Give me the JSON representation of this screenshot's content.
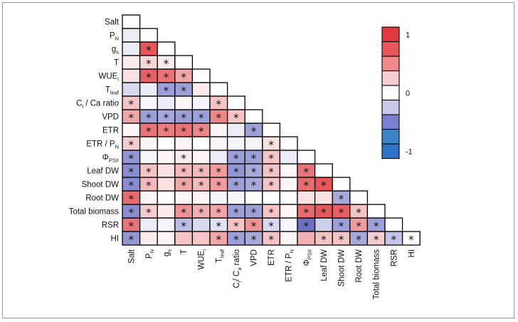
{
  "chart_data": {
    "type": "heatmap",
    "title": "",
    "variables": [
      "Salt",
      "PN",
      "gs",
      "T",
      "WUEi",
      "Tleaf",
      "Ci / Ca ratio",
      "VPD",
      "ETR",
      "ETR / PN",
      "ΦPSII",
      "Leaf DW",
      "Shoot DW",
      "Root DW",
      "Total biomass",
      "RSR",
      "HI"
    ],
    "row_labels": [
      {
        "main": "Salt",
        "sub": ""
      },
      {
        "main": "P",
        "sub": "N"
      },
      {
        "main": "g",
        "sub": "s"
      },
      {
        "main": "T",
        "sub": ""
      },
      {
        "main": "WUE",
        "sub": "i"
      },
      {
        "main": "T",
        "sub": "leaf"
      },
      {
        "main": "C",
        "sub": "i",
        "rest": " / Ca ratio"
      },
      {
        "main": "VPD",
        "sub": ""
      },
      {
        "main": "ETR",
        "sub": ""
      },
      {
        "main": "ETR / P",
        "sub": "N"
      },
      {
        "main": "Φ",
        "sub": "PSII"
      },
      {
        "main": "Leaf DW",
        "sub": ""
      },
      {
        "main": "Shoot DW",
        "sub": ""
      },
      {
        "main": "Root DW",
        "sub": ""
      },
      {
        "main": "Total biomass",
        "sub": ""
      },
      {
        "main": "RSR",
        "sub": ""
      },
      {
        "main": "HI",
        "sub": ""
      }
    ],
    "col_labels": [
      {
        "main": "Salt",
        "sub": ""
      },
      {
        "main": "P",
        "sub": "N"
      },
      {
        "main": "g",
        "sub": "s"
      },
      {
        "main": "T",
        "sub": ""
      },
      {
        "main": "WUE",
        "sub": "i"
      },
      {
        "main": "T",
        "sub": "leaf"
      },
      {
        "main": "C",
        "sub": "i",
        "rest": "/ C",
        "sub2": "a",
        "rest2": " ratio"
      },
      {
        "main": "VPD",
        "sub": ""
      },
      {
        "main": "ETR",
        "sub": ""
      },
      {
        "main": "ETR / P",
        "sub": "N"
      },
      {
        "main": "Φ",
        "sub": "PSII"
      },
      {
        "main": "Leaf DW",
        "sub": ""
      },
      {
        "main": "Shoot DW",
        "sub": ""
      },
      {
        "main": "Root DW",
        "sub": ""
      },
      {
        "main": "Total biomass",
        "sub": ""
      },
      {
        "main": "RSR",
        "sub": ""
      },
      {
        "main": "HI",
        "sub": ""
      }
    ],
    "values": [
      [],
      [
        -0.1
      ],
      [
        -0.1,
        0.85
      ],
      [
        0.1,
        0.2,
        0.1
      ],
      [
        0.15,
        0.8,
        0.7,
        0.45
      ],
      [
        -0.2,
        -0.1,
        -0.5,
        -0.5,
        0.1
      ],
      [
        0.3,
        -0.05,
        -0.1,
        0.05,
        -0.05,
        0.3
      ],
      [
        0.45,
        -0.5,
        -0.45,
        -0.5,
        -0.5,
        0.6,
        0.3
      ],
      [
        0.05,
        0.7,
        0.65,
        0.7,
        0.6,
        0.05,
        -0.1,
        -0.5
      ],
      [
        0.25,
        0.05,
        0.0,
        0.05,
        0.0,
        0.05,
        -0.05,
        -0.05,
        0.15
      ],
      [
        -0.55,
        -0.05,
        0.05,
        0.1,
        0.05,
        -0.1,
        -0.5,
        -0.5,
        0.3,
        -0.1
      ],
      [
        -0.6,
        0.3,
        0.15,
        0.35,
        0.35,
        0.5,
        -0.55,
        -0.45,
        0.3,
        0.05,
        0.7
      ],
      [
        -0.6,
        0.35,
        0.15,
        0.45,
        0.35,
        0.5,
        -0.5,
        -0.45,
        0.3,
        0.05,
        0.75,
        0.85
      ],
      [
        0.75,
        0.05,
        0.0,
        0.05,
        0.05,
        -0.05,
        -0.05,
        0.0,
        0.0,
        0.0,
        0.15,
        0.15,
        -0.45
      ],
      [
        -0.6,
        0.25,
        0.1,
        0.55,
        0.4,
        0.45,
        -0.5,
        -0.5,
        0.3,
        0.05,
        0.75,
        0.85,
        0.8,
        0.3
      ],
      [
        0.7,
        -0.1,
        -0.05,
        -0.35,
        -0.2,
        -0.15,
        0.3,
        0.55,
        -0.2,
        -0.05,
        -0.75,
        -0.25,
        -0.5,
        0.5,
        -0.5
      ],
      [
        -0.55,
        0.1,
        0.05,
        0.3,
        0.3,
        0.45,
        -0.5,
        -0.45,
        0.3,
        0.05,
        0.4,
        0.3,
        0.3,
        -0.45,
        0.25,
        -0.3
      ]
    ],
    "significant": [
      [],
      [
        0
      ],
      [
        0,
        1
      ],
      [
        0,
        1,
        1
      ],
      [
        0,
        1,
        1,
        1
      ],
      [
        0,
        0,
        1,
        1,
        0
      ],
      [
        1,
        0,
        0,
        0,
        0,
        1
      ],
      [
        1,
        1,
        1,
        1,
        1,
        1,
        1
      ],
      [
        0,
        1,
        1,
        1,
        1,
        0,
        0,
        1
      ],
      [
        1,
        0,
        0,
        0,
        0,
        0,
        0,
        0,
        1
      ],
      [
        1,
        0,
        0,
        1,
        0,
        0,
        1,
        1,
        1,
        0
      ],
      [
        1,
        1,
        0,
        1,
        1,
        1,
        1,
        1,
        1,
        0,
        1
      ],
      [
        1,
        1,
        0,
        1,
        1,
        1,
        1,
        1,
        1,
        0,
        1,
        1
      ],
      [
        1,
        0,
        0,
        0,
        0,
        0,
        0,
        0,
        0,
        0,
        0,
        0,
        1
      ],
      [
        1,
        1,
        0,
        1,
        1,
        1,
        1,
        1,
        1,
        0,
        1,
        1,
        1,
        1
      ],
      [
        1,
        0,
        0,
        1,
        0,
        1,
        1,
        1,
        1,
        0,
        1,
        0,
        1,
        1,
        1
      ],
      [
        1,
        0,
        0,
        0,
        0,
        1,
        1,
        1,
        1,
        0,
        0,
        1,
        1,
        1,
        1,
        1
      ]
    ],
    "significance_marker": "*",
    "diagonal_marker": "*",
    "diagonal_marker_row": 16,
    "colorbar": {
      "range": [
        -1,
        1
      ],
      "tick_labels": [
        "1",
        "0",
        "-1"
      ],
      "tick_values": [
        1,
        0,
        -1
      ],
      "steps": [
        1.0,
        0.75,
        0.5,
        0.25,
        0.0,
        -0.25,
        -0.5,
        -0.75,
        -1.0
      ],
      "colors": [
        "#e0393e",
        "#e8555b",
        "#f0878b",
        "#f7cdd0",
        "#ffffff",
        "#c7c8ec",
        "#7c80d0",
        "#3a85c4",
        "#2f74c8"
      ]
    }
  }
}
